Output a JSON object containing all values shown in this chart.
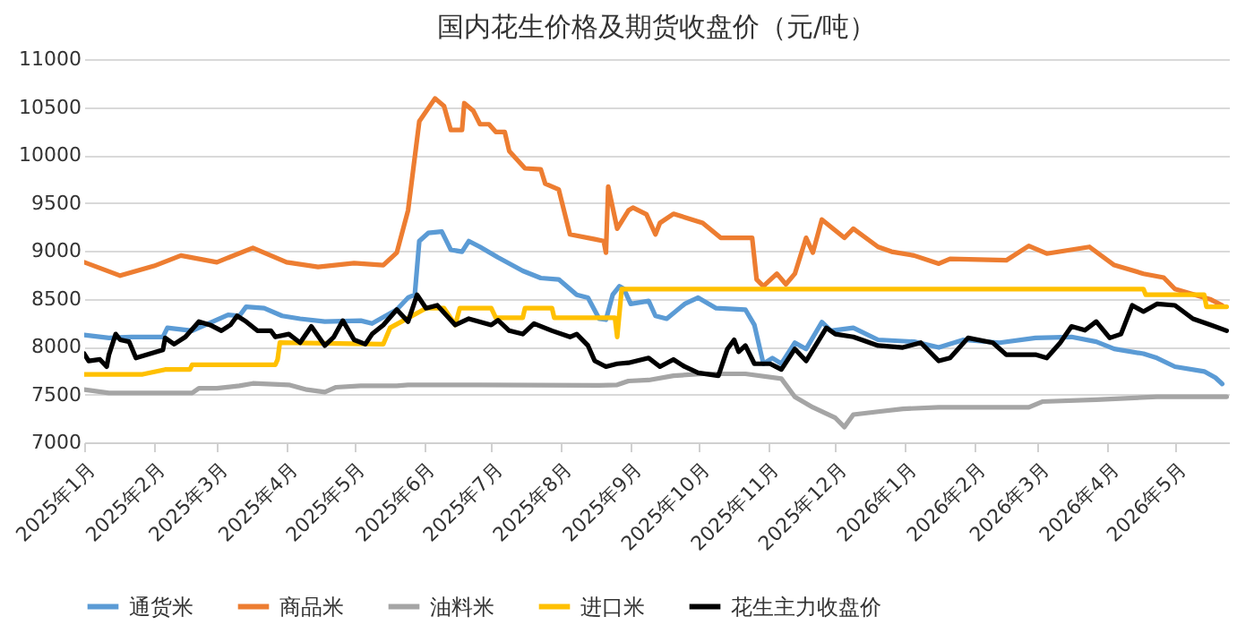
{
  "chart_data": {
    "type": "line",
    "title": "国内花生价格及期货收盘价（元/吨）",
    "line_style": "solid",
    "grid": "y",
    "legend": "bottom",
    "xlim": [
      "2025-01-01",
      "2026-05-25"
    ],
    "ylim": [
      7000,
      11000
    ],
    "yticks": [
      7000,
      7500,
      8000,
      8500,
      9000,
      9500,
      10000,
      10500,
      11000
    ],
    "xticks": [
      {
        "value": "2025-01-01",
        "label": "2025年1月"
      },
      {
        "value": "2025-02-01",
        "label": "2025年2月"
      },
      {
        "value": "2025-03-01",
        "label": "2025年3月"
      },
      {
        "value": "2025-04-01",
        "label": "2025年4月"
      },
      {
        "value": "2025-05-01",
        "label": "2025年5月"
      },
      {
        "value": "2025-06-01",
        "label": "2025年6月"
      },
      {
        "value": "2025-07-01",
        "label": "2025年7月"
      },
      {
        "value": "2025-08-01",
        "label": "2025年8月"
      },
      {
        "value": "2025-09-01",
        "label": "2025年9月"
      },
      {
        "value": "2025-10-01",
        "label": "2025年10月"
      },
      {
        "value": "2025-11-01",
        "label": "2025年11月"
      },
      {
        "value": "2025-12-01",
        "label": "2025年12月"
      },
      {
        "value": "2026-01-01",
        "label": "2026年1月"
      },
      {
        "value": "2026-02-01",
        "label": "2026年2月"
      },
      {
        "value": "2026-03-01",
        "label": "2026年3月"
      },
      {
        "value": "2026-04-01",
        "label": "2026年4月"
      },
      {
        "value": "2026-05-01",
        "label": "2026年5月"
      }
    ],
    "series": [
      {
        "name": "通货米",
        "color": "#5b9bd5",
        "x": [
          "2025-01-01",
          "2025-01-12",
          "2025-01-22",
          "2025-02-05",
          "2025-02-07",
          "2025-02-18",
          "2025-03-06",
          "2025-03-11",
          "2025-03-14",
          "2025-03-22",
          "2025-03-30",
          "2025-04-07",
          "2025-04-18",
          "2025-05-04",
          "2025-05-09",
          "2025-05-20",
          "2025-05-25",
          "2025-05-28",
          "2025-05-30",
          "2025-06-03",
          "2025-06-09",
          "2025-06-13",
          "2025-06-18",
          "2025-06-21",
          "2025-06-26",
          "2025-07-04",
          "2025-07-15",
          "2025-07-23",
          "2025-07-31",
          "2025-08-08",
          "2025-08-13",
          "2025-08-18",
          "2025-08-21",
          "2025-08-24",
          "2025-08-27",
          "2025-08-29",
          "2025-09-01",
          "2025-09-09",
          "2025-09-12",
          "2025-09-17",
          "2025-09-25",
          "2025-10-01",
          "2025-10-09",
          "2025-10-22",
          "2025-10-26",
          "2025-10-30",
          "2025-11-03",
          "2025-11-07",
          "2025-11-13",
          "2025-11-18",
          "2025-11-25",
          "2025-11-29",
          "2025-12-09",
          "2025-12-20",
          "2026-01-05",
          "2026-01-16",
          "2026-01-27",
          "2026-02-12",
          "2026-02-28",
          "2026-03-16",
          "2026-03-27",
          "2026-04-04",
          "2026-04-17",
          "2026-04-23",
          "2026-05-01",
          "2026-05-14",
          "2026-05-19",
          "2026-05-22"
        ],
        "values": [
          8120,
          8090,
          8100,
          8100,
          8195,
          8165,
          8330,
          8320,
          8415,
          8400,
          8320,
          8290,
          8260,
          8270,
          8240,
          8385,
          8510,
          8540,
          9100,
          9185,
          9200,
          9010,
          8990,
          9100,
          9040,
          8930,
          8790,
          8715,
          8700,
          8540,
          8510,
          8290,
          8280,
          8540,
          8630,
          8600,
          8445,
          8475,
          8320,
          8290,
          8445,
          8510,
          8400,
          8385,
          8225,
          7820,
          7880,
          7820,
          8040,
          7975,
          8255,
          8165,
          8195,
          8070,
          8050,
          7990,
          8070,
          8040,
          8090,
          8100,
          8050,
          7975,
          7925,
          7880,
          7790,
          7740,
          7675,
          7610
        ]
      },
      {
        "name": "商品米",
        "color": "#ed7d31",
        "x": [
          "2025-01-01",
          "2025-01-17",
          "2025-02-01",
          "2025-02-13",
          "2025-03-01",
          "2025-03-17",
          "2025-04-01",
          "2025-04-15",
          "2025-05-01",
          "2025-05-14",
          "2025-05-20",
          "2025-05-25",
          "2025-05-30",
          "2025-06-06",
          "2025-06-10",
          "2025-06-13",
          "2025-06-18",
          "2025-06-19",
          "2025-06-23",
          "2025-06-26",
          "2025-06-30",
          "2025-07-03",
          "2025-07-07",
          "2025-07-09",
          "2025-07-16",
          "2025-07-23",
          "2025-07-25",
          "2025-07-31",
          "2025-08-05",
          "2025-08-16",
          "2025-08-20",
          "2025-08-21",
          "2025-08-22",
          "2025-08-26",
          "2025-08-31",
          "2025-09-02",
          "2025-09-08",
          "2025-09-12",
          "2025-09-14",
          "2025-09-20",
          "2025-10-03",
          "2025-10-11",
          "2025-10-25",
          "2025-10-27",
          "2025-10-30",
          "2025-11-05",
          "2025-11-09",
          "2025-11-13",
          "2025-11-18",
          "2025-11-21",
          "2025-11-25",
          "2025-12-05",
          "2025-12-09",
          "2025-12-20",
          "2025-12-26",
          "2026-01-05",
          "2026-01-16",
          "2026-01-21",
          "2026-02-15",
          "2026-02-25",
          "2026-03-05",
          "2026-03-24",
          "2026-04-04",
          "2026-04-17",
          "2026-04-26",
          "2026-05-01",
          "2026-05-17",
          "2026-05-22"
        ],
        "values": [
          8880,
          8740,
          8840,
          8950,
          8880,
          9030,
          8880,
          8830,
          8870,
          8850,
          8980,
          9420,
          10350,
          10590,
          10510,
          10260,
          10260,
          10540,
          10460,
          10320,
          10320,
          10240,
          10240,
          10040,
          9860,
          9850,
          9700,
          9640,
          9170,
          9120,
          9100,
          8980,
          9670,
          9230,
          9420,
          9450,
          9380,
          9170,
          9290,
          9385,
          9290,
          9135,
          9135,
          8700,
          8630,
          8760,
          8650,
          8760,
          9135,
          8980,
          9325,
          9135,
          9230,
          9040,
          8990,
          8950,
          8865,
          8915,
          8900,
          9050,
          8970,
          9040,
          8850,
          8760,
          8720,
          8600,
          8490,
          8430
        ]
      },
      {
        "name": "油料米",
        "color": "#a5a5a5",
        "x": [
          "2025-01-01",
          "2025-01-12",
          "2025-02-18",
          "2025-02-21",
          "2025-03-01",
          "2025-03-11",
          "2025-03-17",
          "2025-04-02",
          "2025-04-10",
          "2025-04-18",
          "2025-04-23",
          "2025-05-04",
          "2025-05-20",
          "2025-05-25",
          "2025-06-26",
          "2025-08-18",
          "2025-08-26",
          "2025-08-31",
          "2025-09-09",
          "2025-09-20",
          "2025-10-03",
          "2025-10-22",
          "2025-11-07",
          "2025-11-13",
          "2025-11-21",
          "2025-12-01",
          "2025-12-05",
          "2025-12-09",
          "2025-12-20",
          "2025-12-31",
          "2026-01-16",
          "2026-02-25",
          "2026-03-03",
          "2026-03-27",
          "2026-04-23",
          "2026-05-24"
        ],
        "values": [
          7550,
          7515,
          7515,
          7565,
          7565,
          7590,
          7615,
          7600,
          7550,
          7525,
          7575,
          7590,
          7590,
          7600,
          7600,
          7595,
          7600,
          7640,
          7650,
          7695,
          7715,
          7715,
          7665,
          7475,
          7365,
          7255,
          7160,
          7290,
          7320,
          7350,
          7365,
          7365,
          7425,
          7445,
          7475,
          7475
        ]
      },
      {
        "name": "进口米",
        "color": "#ffc000",
        "x": [
          "2025-01-01",
          "2025-01-27",
          "2025-02-06",
          "2025-02-17",
          "2025-02-18",
          "2025-03-27",
          "2025-03-28",
          "2025-03-29",
          "2025-05-14",
          "2025-05-17",
          "2025-06-02",
          "2025-06-10",
          "2025-06-15",
          "2025-06-17",
          "2025-07-01",
          "2025-07-03",
          "2025-07-15",
          "2025-07-16",
          "2025-07-28",
          "2025-07-29",
          "2025-08-25",
          "2025-08-26",
          "2025-08-28",
          "2026-04-17",
          "2026-04-18",
          "2026-05-14",
          "2026-05-15",
          "2026-05-24"
        ],
        "values": [
          7710,
          7710,
          7760,
          7760,
          7810,
          7810,
          7865,
          8040,
          8025,
          8195,
          8400,
          8400,
          8225,
          8400,
          8400,
          8300,
          8300,
          8400,
          8400,
          8300,
          8300,
          8100,
          8600,
          8600,
          8540,
          8540,
          8415,
          8415
        ]
      },
      {
        "name": "花生主力收盘价",
        "color": "#000000",
        "x": [
          "2025-01-01",
          "2025-01-03",
          "2025-01-08",
          "2025-01-11",
          "2025-01-12",
          "2025-01-15",
          "2025-01-17",
          "2025-01-21",
          "2025-01-24",
          "2025-01-29",
          "2025-02-05",
          "2025-02-06",
          "2025-02-10",
          "2025-02-15",
          "2025-02-21",
          "2025-02-26",
          "2025-03-03",
          "2025-03-07",
          "2025-03-10",
          "2025-03-14",
          "2025-03-19",
          "2025-03-25",
          "2025-03-27",
          "2025-04-02",
          "2025-04-07",
          "2025-04-12",
          "2025-04-18",
          "2025-04-22",
          "2025-04-26",
          "2025-05-01",
          "2025-05-06",
          "2025-05-09",
          "2025-05-14",
          "2025-05-20",
          "2025-05-25",
          "2025-05-29",
          "2025-06-02",
          "2025-06-07",
          "2025-06-15",
          "2025-06-21",
          "2025-07-01",
          "2025-07-04",
          "2025-07-09",
          "2025-07-15",
          "2025-07-20",
          "2025-07-28",
          "2025-08-05",
          "2025-08-08",
          "2025-08-13",
          "2025-08-16",
          "2025-08-21",
          "2025-08-26",
          "2025-08-31",
          "2025-09-09",
          "2025-09-14",
          "2025-09-20",
          "2025-09-25",
          "2025-10-01",
          "2025-10-10",
          "2025-10-14",
          "2025-10-17",
          "2025-10-19",
          "2025-10-22",
          "2025-10-26",
          "2025-11-02",
          "2025-11-07",
          "2025-11-13",
          "2025-11-18",
          "2025-11-23",
          "2025-11-27",
          "2025-12-01",
          "2025-12-09",
          "2025-12-20",
          "2025-12-31",
          "2026-01-08",
          "2026-01-16",
          "2026-01-21",
          "2026-01-29",
          "2026-02-09",
          "2026-02-15",
          "2026-02-28",
          "2026-03-05",
          "2026-03-11",
          "2026-03-16",
          "2026-03-22",
          "2026-03-27",
          "2026-04-02",
          "2026-04-07",
          "2026-04-12",
          "2026-04-17",
          "2026-04-23",
          "2026-05-01",
          "2026-05-09",
          "2026-05-17",
          "2026-05-24"
        ],
        "values": [
          7925,
          7850,
          7865,
          7790,
          7915,
          8130,
          8070,
          8050,
          7880,
          7915,
          7965,
          8090,
          8025,
          8100,
          8260,
          8225,
          8165,
          8225,
          8320,
          8260,
          8165,
          8165,
          8100,
          8130,
          8040,
          8210,
          8010,
          8100,
          8270,
          8070,
          8025,
          8130,
          8225,
          8385,
          8260,
          8540,
          8400,
          8430,
          8225,
          8290,
          8225,
          8275,
          8165,
          8130,
          8240,
          8165,
          8100,
          8130,
          8010,
          7850,
          7790,
          7820,
          7830,
          7880,
          7790,
          7865,
          7790,
          7725,
          7695,
          7975,
          8070,
          7945,
          8010,
          7820,
          7820,
          7760,
          7975,
          7850,
          8040,
          8195,
          8130,
          8100,
          8010,
          7990,
          8040,
          7850,
          7880,
          8090,
          8040,
          7915,
          7915,
          7880,
          8040,
          8210,
          8170,
          8260,
          8090,
          8130,
          8430,
          8365,
          8445,
          8430,
          8290,
          8225,
          8165
        ]
      }
    ]
  }
}
